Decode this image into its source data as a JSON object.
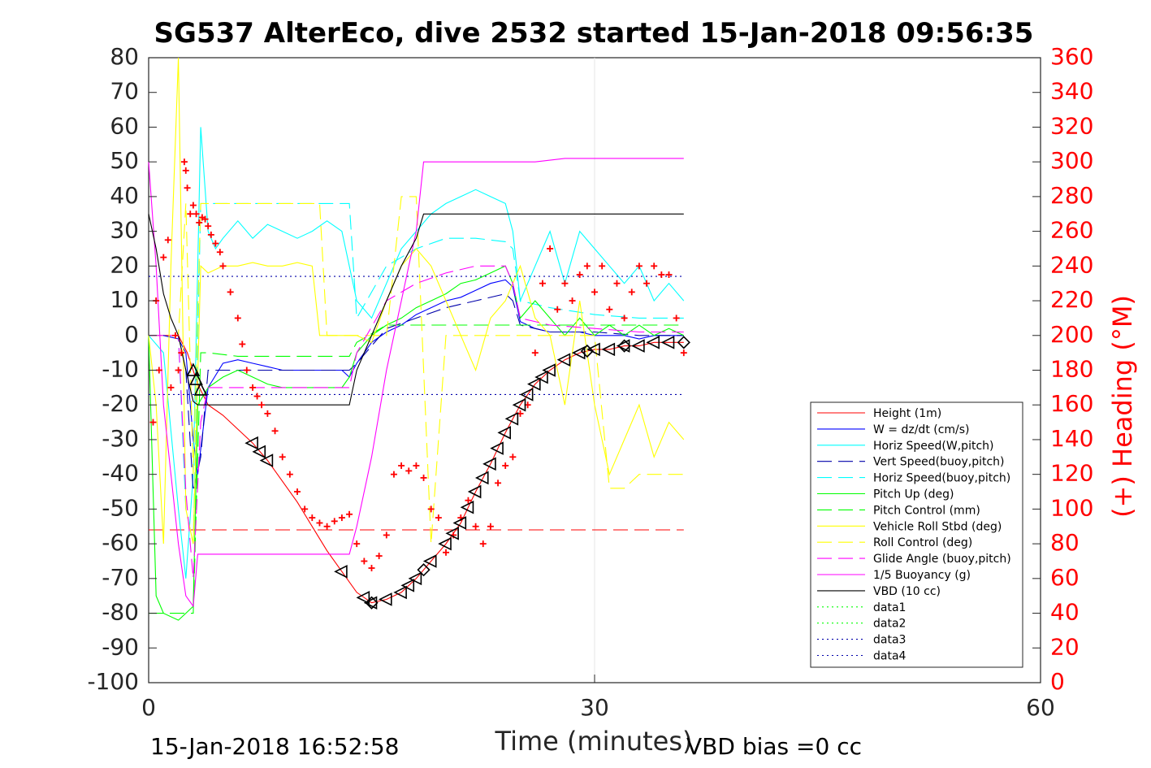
{
  "chart_data": {
    "type": "line",
    "title": "SG537 AlterEco, dive 2532 started 15-Jan-2018 09:56:35",
    "xlabel": "Time (minutes)",
    "ylabel_right": "(+) Heading (°M)",
    "footer_left": "15-Jan-2018 16:52:58",
    "footer_right": "VBD bias =0 cc",
    "xlim": [
      0,
      60
    ],
    "ylim": [
      -100,
      80
    ],
    "ylim_right": [
      0,
      360
    ],
    "xticks": [
      0,
      30,
      60
    ],
    "yticks": [
      -100,
      -90,
      -80,
      -70,
      -60,
      -50,
      -40,
      -30,
      -20,
      -10,
      0,
      10,
      20,
      30,
      40,
      50,
      60,
      70,
      80
    ],
    "yticks_right": [
      0,
      20,
      40,
      60,
      80,
      100,
      120,
      140,
      160,
      180,
      200,
      220,
      240,
      260,
      280,
      300,
      320,
      340,
      360
    ],
    "grid": "x-only at 30",
    "legend_position": "bottom-right",
    "colors": {
      "red": "#ff0000",
      "blue": "#0000ff",
      "cyan": "#00ffff",
      "green": "#00ff00",
      "yellow": "#ffff00",
      "magenta": "#ff00ff",
      "black": "#000000",
      "navy": "#0000aa",
      "axis_text": "#262626"
    },
    "series": [
      {
        "name": "Height (1m)",
        "style": "solid",
        "color": "#ff0000",
        "x": [
          0,
          1,
          2,
          2.6,
          3.3,
          4,
          5,
          6,
          7,
          8,
          9,
          10,
          11,
          12,
          13,
          14,
          15,
          16,
          17,
          18,
          19,
          20,
          21,
          22,
          23,
          24,
          25,
          26,
          27,
          28,
          29,
          30,
          31,
          32,
          33,
          34,
          35,
          36
        ],
        "y": [
          0,
          0,
          0,
          -5,
          -14,
          -20,
          -23,
          -27,
          -31,
          -36,
          -42,
          -48,
          -55,
          -62,
          -68,
          -74,
          -77,
          -76,
          -74,
          -70,
          -65,
          -60,
          -54,
          -45,
          -37,
          -28,
          -20,
          -14,
          -10,
          -7,
          -5,
          -4,
          -4,
          -3,
          -3,
          -2,
          -2,
          -2
        ]
      },
      {
        "name": "W = dz/dt (cm/s)",
        "style": "solid",
        "color": "#0000ff",
        "x": [
          0,
          1,
          2,
          2.5,
          3,
          3.3,
          4,
          5,
          6,
          7,
          8,
          9,
          10,
          11,
          12,
          13,
          13.5,
          14,
          15,
          16,
          17,
          18,
          19,
          20,
          21,
          22,
          23,
          24,
          24.5,
          25,
          26,
          27,
          28,
          29,
          30,
          31,
          32,
          33,
          34,
          35,
          36
        ],
        "y": [
          0,
          0,
          -1,
          -5,
          -30,
          -40,
          -15,
          -8,
          -7,
          -8,
          -9,
          -10,
          -10,
          -10,
          -10,
          -10,
          -12,
          -8,
          -2,
          1,
          3,
          6,
          8,
          10,
          11,
          13,
          15,
          16,
          14,
          4,
          2,
          1,
          1,
          1,
          0,
          0,
          0,
          -1,
          0,
          0,
          0
        ]
      },
      {
        "name": "Horiz Speed(W,pitch)",
        "style": "solid",
        "color": "#00ffff",
        "x": [
          0,
          1,
          2,
          2.5,
          3,
          3.5,
          4,
          4.5,
          5,
          6,
          7,
          8,
          9,
          10,
          11,
          12,
          13,
          14,
          15,
          16,
          17,
          18,
          19,
          20,
          21,
          22,
          23,
          24,
          24.5,
          25,
          26,
          27,
          28,
          29,
          30,
          31,
          32,
          33,
          34,
          35,
          36
        ],
        "y": [
          0,
          -5,
          -50,
          -70,
          -40,
          60,
          30,
          25,
          28,
          33,
          28,
          32,
          30,
          28,
          30,
          33,
          30,
          10,
          5,
          15,
          25,
          30,
          35,
          38,
          40,
          42,
          40,
          38,
          30,
          10,
          20,
          30,
          15,
          30,
          25,
          20,
          15,
          20,
          10,
          15,
          10
        ]
      },
      {
        "name": "Vert Speed(buoy,pitch)",
        "style": "dashed",
        "color": "#0000aa",
        "x": [
          0,
          2,
          2.5,
          3,
          3.5,
          4,
          6,
          8,
          10,
          12,
          13.5,
          14,
          16,
          18,
          20,
          22,
          24,
          24.5,
          25,
          27,
          30,
          33,
          36
        ],
        "y": [
          0,
          0,
          -10,
          -45,
          -35,
          -10,
          -10,
          -10,
          -10,
          -10,
          -10,
          -8,
          2,
          5,
          8,
          10,
          12,
          10,
          3,
          1,
          1,
          0,
          0
        ]
      },
      {
        "name": "Horiz Speed(buoy,pitch)",
        "style": "dashed",
        "color": "#00ffff",
        "x": [
          0,
          2,
          2.5,
          3,
          3.5,
          4,
          6,
          8,
          10,
          12,
          13.5,
          14,
          16,
          18,
          20,
          22,
          24,
          24.5,
          25,
          27,
          30,
          33,
          36
        ],
        "y": [
          0,
          0,
          -50,
          -60,
          38,
          38,
          38,
          38,
          38,
          38,
          38,
          5,
          20,
          25,
          28,
          28,
          27,
          25,
          10,
          8,
          6,
          5,
          5
        ]
      },
      {
        "name": "Pitch Up (deg)",
        "style": "solid",
        "color": "#00ff00",
        "x": [
          0,
          0.5,
          1,
          2,
          2.5,
          3,
          3.3,
          4,
          5,
          6,
          7,
          8,
          9,
          10,
          11,
          12,
          13,
          13.5,
          14,
          15,
          16,
          17,
          18,
          19,
          20,
          21,
          22,
          23,
          24,
          24.5,
          25,
          26,
          27,
          28,
          29,
          30,
          31,
          32,
          33,
          34,
          35,
          36
        ],
        "y": [
          0,
          -75,
          -80,
          -82,
          -80,
          -78,
          -20,
          -15,
          -12,
          -10,
          -12,
          -14,
          -15,
          -15,
          -15,
          -15,
          -15,
          -12,
          -5,
          0,
          3,
          5,
          8,
          10,
          12,
          15,
          16,
          18,
          20,
          15,
          5,
          10,
          5,
          0,
          5,
          0,
          3,
          0,
          3,
          0,
          2,
          0
        ]
      },
      {
        "name": "Pitch Control (mm)",
        "style": "dashed",
        "color": "#00ff00",
        "x": [
          0,
          1,
          2,
          2.5,
          3,
          3.5,
          4,
          6,
          8,
          10,
          12,
          13.5,
          14,
          16,
          18,
          20,
          22,
          24,
          24.5,
          25,
          30,
          33,
          36
        ],
        "y": [
          -80,
          -80,
          -80,
          -80,
          -80,
          -5,
          -5,
          -6,
          -6,
          -6,
          -6,
          -6,
          -2,
          3,
          3,
          3,
          3,
          3,
          3,
          3,
          3,
          3,
          3
        ]
      },
      {
        "name": "Vehicle Roll Stbd (deg)",
        "style": "solid",
        "color": "#ffff00",
        "x": [
          0,
          0.5,
          1,
          1.5,
          2,
          2.5,
          3,
          3.5,
          4,
          5,
          6,
          7,
          8,
          9,
          10,
          11,
          11.5,
          12,
          13,
          14,
          15,
          16,
          17,
          18,
          19,
          20,
          21,
          22,
          23,
          24,
          25,
          26,
          27,
          28,
          29,
          30,
          31,
          32,
          33,
          34,
          35,
          36
        ],
        "y": [
          0,
          -20,
          -60,
          20,
          80,
          -50,
          -60,
          20,
          18,
          20,
          20,
          21,
          20,
          20,
          21,
          20,
          0,
          0,
          0,
          0,
          -2,
          10,
          20,
          25,
          20,
          10,
          0,
          -10,
          5,
          10,
          20,
          5,
          0,
          -20,
          10,
          -20,
          -40,
          -30,
          -20,
          -35,
          -25,
          -30
        ]
      },
      {
        "name": "Roll Control (deg)",
        "style": "dashed",
        "color": "#ffff00",
        "x": [
          0,
          1,
          2,
          2.5,
          3,
          3.5,
          4,
          6,
          8,
          10,
          11.5,
          12,
          14,
          16,
          17,
          18,
          19,
          20,
          24,
          25,
          26,
          28,
          30,
          31,
          32,
          33,
          34,
          35,
          36
        ],
        "y": [
          0,
          0,
          0,
          38,
          -40,
          38,
          38,
          38,
          38,
          38,
          38,
          0,
          0,
          0,
          40,
          40,
          -60,
          0,
          0,
          0,
          0,
          0,
          0,
          -44,
          -44,
          -40,
          -40,
          -40,
          -40
        ]
      },
      {
        "name": "Glide Angle (buoy,pitch)",
        "style": "dashed",
        "color": "#ff00ff",
        "x": [
          0,
          1,
          2,
          2.5,
          3,
          3.5,
          4,
          6,
          8,
          10,
          12,
          13.5,
          14,
          16,
          18,
          20,
          22,
          24,
          24.5,
          25,
          27,
          30,
          33,
          36
        ],
        "y": [
          0,
          0,
          0,
          -45,
          -70,
          -25,
          -15,
          -15,
          -15,
          -15,
          -15,
          -15,
          -5,
          10,
          15,
          18,
          20,
          20,
          15,
          5,
          3,
          2,
          1,
          1
        ]
      },
      {
        "name": "1/5 Buoyancy (g)",
        "style": "solid",
        "color": "#ff00ff",
        "x": [
          0,
          0.5,
          1,
          2,
          2.5,
          3,
          3.3,
          4,
          6,
          8,
          10,
          12,
          13,
          13.5,
          14,
          15,
          16,
          17,
          18,
          18.5,
          19,
          20,
          22,
          24,
          26,
          28,
          30,
          32,
          34,
          36
        ],
        "y": [
          50,
          20,
          -20,
          -60,
          -75,
          -78,
          -63,
          -63,
          -63,
          -63,
          -63,
          -63,
          -63,
          -63,
          -55,
          -35,
          -10,
          10,
          30,
          50,
          50,
          50,
          50,
          50,
          50,
          51,
          51,
          51,
          51,
          51
        ]
      },
      {
        "name": "VBD (10 cc)",
        "style": "solid",
        "color": "#000000",
        "x": [
          0,
          0.5,
          1,
          1.5,
          2,
          2.5,
          3,
          3.3,
          4,
          6,
          8,
          10,
          12,
          13.5,
          14,
          15,
          16,
          17,
          18,
          18.5,
          19,
          20,
          22,
          24,
          26,
          28,
          30,
          32,
          34,
          36
        ],
        "y": [
          35,
          25,
          12,
          5,
          0,
          -10,
          -19,
          -20,
          -20,
          -20,
          -20,
          -20,
          -20,
          -20,
          -10,
          0,
          10,
          20,
          28,
          35,
          35,
          35,
          35,
          35,
          35,
          35,
          35,
          35,
          35,
          35
        ]
      },
      {
        "name": "data1",
        "style": "dotted",
        "color": "#00ff00",
        "x": [],
        "y": []
      },
      {
        "name": "data2",
        "style": "dotted",
        "color": "#00ff00",
        "x": [],
        "y": []
      },
      {
        "name": "data3",
        "style": "dotted",
        "color": "#0000aa",
        "x": [
          0,
          36
        ],
        "y": [
          17,
          17
        ]
      },
      {
        "name": "data4",
        "style": "dotted",
        "color": "#0000aa",
        "x": [
          0,
          36
        ],
        "y": [
          -17,
          -17
        ]
      }
    ],
    "unlabeled_lines": [
      {
        "style": "dashed",
        "color": "#ff0000",
        "x": [
          0,
          36
        ],
        "y": [
          -56,
          -56
        ]
      }
    ],
    "heading_points_right_axis": {
      "x": [
        0.3,
        0.5,
        0.7,
        1,
        1.3,
        1.5,
        1.8,
        2,
        2.2,
        2.4,
        2.5,
        2.6,
        2.8,
        3,
        3.2,
        3.4,
        3.6,
        3.8,
        4,
        4.2,
        4.5,
        4.8,
        5,
        5.5,
        6,
        6.3,
        6.6,
        7,
        7.3,
        7.6,
        8,
        8.5,
        9,
        9.5,
        10,
        10.5,
        11,
        11.5,
        12,
        12.5,
        13,
        13.5,
        14,
        14.5,
        15,
        15.5,
        16,
        16.5,
        17,
        17.5,
        18,
        18.5,
        19,
        19.5,
        20,
        20.5,
        21,
        21.5,
        22,
        22.5,
        23,
        23.5,
        24,
        24.5,
        25,
        25.5,
        26,
        26.5,
        27,
        27.5,
        28,
        28.5,
        29,
        29.5,
        30,
        30.5,
        31,
        31.5,
        32,
        32.5,
        33,
        33.5,
        34,
        34.5,
        35,
        35.5,
        36
      ],
      "y": [
        150,
        220,
        180,
        245,
        255,
        170,
        200,
        180,
        190,
        300,
        295,
        285,
        270,
        275,
        270,
        265,
        268,
        267,
        263,
        258,
        253,
        248,
        240,
        225,
        210,
        195,
        180,
        170,
        165,
        160,
        155,
        145,
        130,
        120,
        110,
        100,
        95,
        92,
        90,
        93,
        95,
        97,
        80,
        70,
        66,
        73,
        85,
        120,
        125,
        122,
        125,
        118,
        100,
        95,
        75,
        85,
        95,
        105,
        90,
        80,
        90,
        115,
        125,
        130,
        155,
        160,
        190,
        230,
        250,
        215,
        230,
        220,
        235,
        240,
        225,
        240,
        215,
        230,
        210,
        225,
        240,
        230,
        240,
        235,
        235,
        210,
        190
      ]
    },
    "markers_on_height": {
      "triangle_up_x": [
        3,
        3.2,
        3.5
      ],
      "triangle_left_x": [
        7,
        7.5,
        8,
        13,
        14.5,
        15,
        16,
        17,
        17.5,
        18,
        19,
        20,
        20.5,
        21,
        21.5,
        22,
        22.5,
        23,
        23.5,
        24,
        24.5,
        25,
        25.5,
        26,
        26.5,
        27,
        28,
        29,
        30,
        31,
        32,
        33,
        34,
        35
      ],
      "diamond_x": [
        15,
        18.5,
        29.5,
        32,
        36
      ]
    }
  }
}
